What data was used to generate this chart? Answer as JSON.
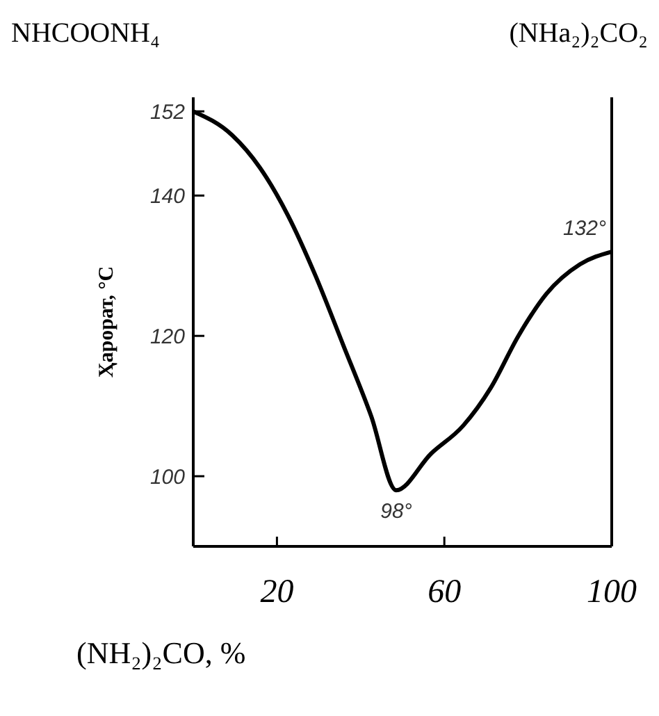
{
  "chart_data": {
    "type": "line",
    "xlabel": "(NH₂)₂CO, %",
    "ylabel": "Ҳарорат, °C",
    "x": [
      0,
      9.3,
      15.9,
      22.6,
      29.2,
      35.9,
      42.5,
      48.5,
      56.8,
      64.5,
      71.1,
      77.7,
      84.4,
      92.4,
      100
    ],
    "values": [
      152,
      148.6,
      144,
      137.2,
      128.6,
      118.6,
      108.6,
      98,
      103.2,
      107.2,
      112.6,
      120,
      126,
      130.2,
      132
    ],
    "color": "#000000",
    "xlim": [
      0,
      100
    ],
    "xticks": [
      20,
      60,
      100
    ],
    "ylim": [
      90,
      154
    ],
    "yticks": [
      100,
      120,
      140,
      152
    ],
    "grid": false,
    "marker": "none",
    "line_style": "solid",
    "annotations": [
      "NHCOONH₄",
      "(NHa₂)₂CO₂",
      {
        "text": "98°",
        "x": 48.5,
        "y": 98
      },
      {
        "text": "132°",
        "x": 100,
        "y": 132
      }
    ]
  }
}
